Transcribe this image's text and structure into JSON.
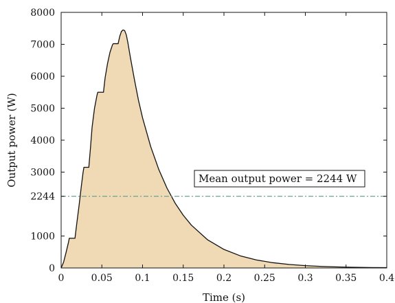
{
  "chart_data": {
    "type": "area",
    "title": "",
    "xlabel": "Time (s)",
    "ylabel": "Output power (W)",
    "xlim": [
      0,
      0.4
    ],
    "ylim": [
      0,
      8000
    ],
    "xticks": [
      0,
      0.05,
      0.1,
      0.15,
      0.2,
      0.25,
      0.3,
      0.35,
      0.4
    ],
    "xtick_labels": [
      "0",
      "0.05",
      "0.1",
      "0.15",
      "0.2",
      "0.25",
      "0.3",
      "0.35",
      "0.4"
    ],
    "yticks": [
      0,
      1000,
      2244,
      3000,
      4000,
      5000,
      6000,
      7000,
      8000
    ],
    "ytick_labels": [
      "0",
      "1000",
      "2244",
      "3000",
      "4000",
      "5000",
      "6000",
      "7000",
      "8000"
    ],
    "grid": false,
    "series": [
      {
        "fill_color": "#f0d9b5",
        "line_color": "#111111",
        "x": [
          0,
          0.003,
          0.006,
          0.009,
          0.01,
          0.017,
          0.019,
          0.022,
          0.025,
          0.027,
          0.028,
          0.034,
          0.036,
          0.038,
          0.041,
          0.044,
          0.045,
          0.052,
          0.054,
          0.057,
          0.06,
          0.063,
          0.064,
          0.07,
          0.072,
          0.074,
          0.076,
          0.078,
          0.08,
          0.082,
          0.085,
          0.09,
          0.095,
          0.1,
          0.11,
          0.12,
          0.13,
          0.14,
          0.15,
          0.16,
          0.18,
          0.2,
          0.22,
          0.24,
          0.26,
          0.28,
          0.3,
          0.32,
          0.34,
          0.36,
          0.38,
          0.4
        ],
        "y": [
          0,
          180,
          480,
          800,
          930,
          930,
          1350,
          1950,
          2600,
          3000,
          3150,
          3150,
          3750,
          4400,
          5000,
          5400,
          5500,
          5500,
          5950,
          6400,
          6750,
          6980,
          7020,
          7020,
          7250,
          7400,
          7450,
          7430,
          7300,
          7050,
          6600,
          5900,
          5250,
          4700,
          3800,
          3080,
          2500,
          2030,
          1650,
          1340,
          880,
          580,
          380,
          250,
          165,
          110,
          72,
          48,
          32,
          21,
          14,
          9
        ]
      }
    ],
    "reference_line": {
      "y": 2244,
      "style": "dash-dot",
      "color": "#6aa596"
    },
    "annotation": {
      "text": "Mean output power = 2244 W"
    }
  }
}
